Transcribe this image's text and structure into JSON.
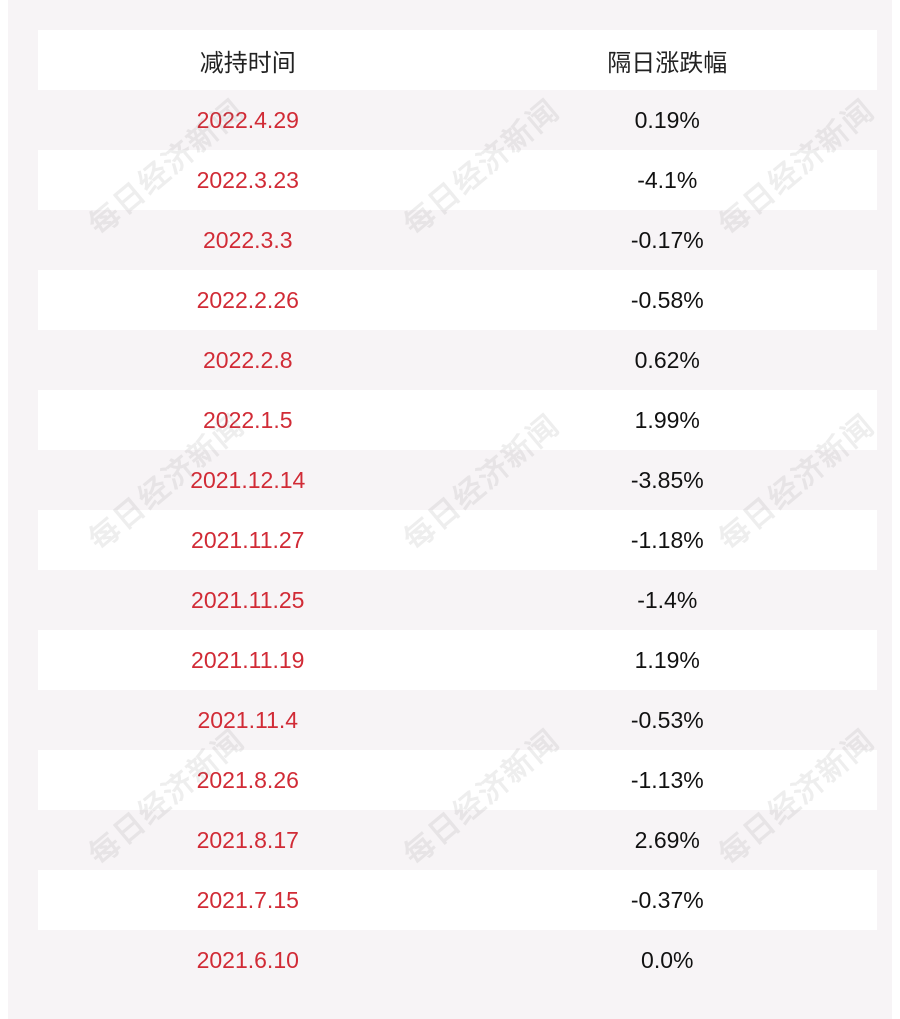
{
  "table": {
    "headers": [
      "减持时间",
      "隔日涨跌幅"
    ],
    "rows": [
      [
        "2022.4.29",
        "0.19%"
      ],
      [
        "2022.3.23",
        "-4.1%"
      ],
      [
        "2022.3.3",
        "-0.17%"
      ],
      [
        "2022.2.26",
        "-0.58%"
      ],
      [
        "2022.2.8",
        "0.62%"
      ],
      [
        "2022.1.5",
        "1.99%"
      ],
      [
        "2021.12.14",
        "-3.85%"
      ],
      [
        "2021.11.27",
        "-1.18%"
      ],
      [
        "2021.11.25",
        "-1.4%"
      ],
      [
        "2021.11.19",
        "1.19%"
      ],
      [
        "2021.11.4",
        "-0.53%"
      ],
      [
        "2021.8.26",
        "-1.13%"
      ],
      [
        "2021.8.17",
        "2.69%"
      ],
      [
        "2021.7.15",
        "-0.37%"
      ],
      [
        "2021.6.10",
        "0.0%"
      ]
    ]
  },
  "watermark": "每日经济新闻"
}
